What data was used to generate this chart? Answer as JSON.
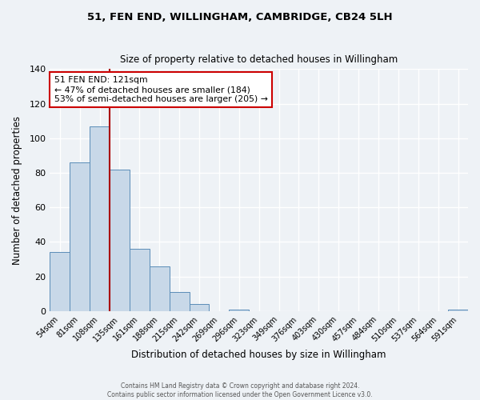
{
  "title": "51, FEN END, WILLINGHAM, CAMBRIDGE, CB24 5LH",
  "subtitle": "Size of property relative to detached houses in Willingham",
  "xlabel": "Distribution of detached houses by size in Willingham",
  "ylabel": "Number of detached properties",
  "bar_labels": [
    "54sqm",
    "81sqm",
    "108sqm",
    "135sqm",
    "161sqm",
    "188sqm",
    "215sqm",
    "242sqm",
    "269sqm",
    "296sqm",
    "323sqm",
    "349sqm",
    "376sqm",
    "403sqm",
    "430sqm",
    "457sqm",
    "484sqm",
    "510sqm",
    "537sqm",
    "564sqm",
    "591sqm"
  ],
  "bar_values": [
    34,
    86,
    107,
    82,
    36,
    26,
    11,
    4,
    0,
    1,
    0,
    0,
    0,
    0,
    0,
    0,
    0,
    0,
    0,
    0,
    1
  ],
  "bar_color": "#c8d8e8",
  "bar_edge_color": "#5b8db8",
  "ylim": [
    0,
    140
  ],
  "yticks": [
    0,
    20,
    40,
    60,
    80,
    100,
    120,
    140
  ],
  "vline_x": 2.5,
  "vline_color": "#aa0000",
  "annotation_title": "51 FEN END: 121sqm",
  "annotation_line1": "← 47% of detached houses are smaller (184)",
  "annotation_line2": "53% of semi-detached houses are larger (205) →",
  "annotation_box_color": "#ffffff",
  "annotation_box_edge": "#cc0000",
  "footer1": "Contains HM Land Registry data © Crown copyright and database right 2024.",
  "footer2": "Contains public sector information licensed under the Open Government Licence v3.0.",
  "background_color": "#eef2f6",
  "plot_background": "#eef2f6",
  "grid_color": "#ffffff",
  "title_fontsize": 9.5,
  "subtitle_fontsize": 8.5
}
